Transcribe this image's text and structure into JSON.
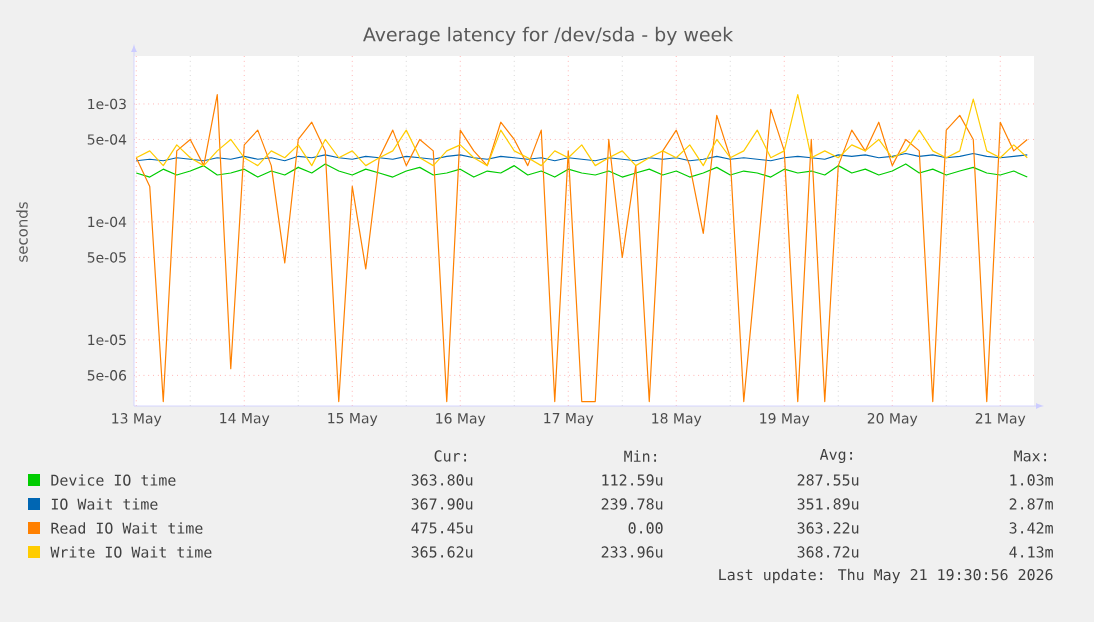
{
  "chart_data": {
    "type": "line",
    "title": "Average latency for /dev/sda - by week",
    "ylabel": "seconds",
    "x": [
      "2026-05-13T12:00",
      "2026-05-13T15:00",
      "2026-05-13T18:00",
      "2026-05-13T21:00",
      "2026-05-14T00:00",
      "2026-05-14T03:00",
      "2026-05-14T06:00",
      "2026-05-14T09:00",
      "2026-05-14T12:00",
      "2026-05-14T15:00",
      "2026-05-14T18:00",
      "2026-05-14T21:00",
      "2026-05-15T00:00",
      "2026-05-15T03:00",
      "2026-05-15T06:00",
      "2026-05-15T09:00",
      "2026-05-15T12:00",
      "2026-05-15T15:00",
      "2026-05-15T18:00",
      "2026-05-15T21:00",
      "2026-05-16T00:00",
      "2026-05-16T03:00",
      "2026-05-16T06:00",
      "2026-05-16T09:00",
      "2026-05-16T12:00",
      "2026-05-16T15:00",
      "2026-05-16T18:00",
      "2026-05-16T21:00",
      "2026-05-17T00:00",
      "2026-05-17T03:00",
      "2026-05-17T06:00",
      "2026-05-17T09:00",
      "2026-05-17T12:00",
      "2026-05-17T15:00",
      "2026-05-17T18:00",
      "2026-05-17T21:00",
      "2026-05-18T00:00",
      "2026-05-18T03:00",
      "2026-05-18T06:00",
      "2026-05-18T09:00",
      "2026-05-18T12:00",
      "2026-05-18T15:00",
      "2026-05-18T18:00",
      "2026-05-18T21:00",
      "2026-05-19T00:00",
      "2026-05-19T03:00",
      "2026-05-19T06:00",
      "2026-05-19T09:00",
      "2026-05-19T12:00",
      "2026-05-19T15:00",
      "2026-05-19T18:00",
      "2026-05-19T21:00",
      "2026-05-20T00:00",
      "2026-05-20T03:00",
      "2026-05-20T06:00",
      "2026-05-20T09:00",
      "2026-05-20T12:00",
      "2026-05-20T15:00",
      "2026-05-20T18:00",
      "2026-05-20T21:00",
      "2026-05-21T00:00",
      "2026-05-21T03:00",
      "2026-05-21T06:00",
      "2026-05-21T09:00",
      "2026-05-21T12:00",
      "2026-05-21T15:00",
      "2026-05-21T18:00"
    ],
    "series": [
      {
        "name": "Device IO time",
        "color": "#00cc00",
        "values": [
          0.00026,
          0.00024,
          0.00028,
          0.00025,
          0.00027,
          0.0003,
          0.00025,
          0.00026,
          0.00028,
          0.00024,
          0.00027,
          0.00025,
          0.00029,
          0.00026,
          0.00031,
          0.00027,
          0.00025,
          0.00028,
          0.00026,
          0.00024,
          0.00027,
          0.00029,
          0.00025,
          0.00026,
          0.00028,
          0.00024,
          0.00027,
          0.00026,
          0.0003,
          0.00025,
          0.00027,
          0.00024,
          0.00028,
          0.00026,
          0.00025,
          0.00027,
          0.00024,
          0.00026,
          0.00028,
          0.00025,
          0.00027,
          0.00024,
          0.00026,
          0.00029,
          0.00025,
          0.00027,
          0.00026,
          0.00024,
          0.00028,
          0.00026,
          0.00027,
          0.00025,
          0.0003,
          0.00026,
          0.00028,
          0.00025,
          0.00027,
          0.00031,
          0.00026,
          0.00028,
          0.00025,
          0.00027,
          0.00029,
          0.00026,
          0.00025,
          0.00027,
          0.00024
        ]
      },
      {
        "name": "IO Wait time",
        "color": "#0066b3",
        "values": [
          0.00033,
          0.00034,
          0.00033,
          0.00035,
          0.00034,
          0.00033,
          0.00035,
          0.00034,
          0.00036,
          0.00034,
          0.00035,
          0.00033,
          0.00036,
          0.00035,
          0.00037,
          0.00035,
          0.00034,
          0.00036,
          0.00035,
          0.00034,
          0.00036,
          0.00035,
          0.00034,
          0.00036,
          0.00037,
          0.00035,
          0.00034,
          0.00036,
          0.00035,
          0.00034,
          0.00035,
          0.00033,
          0.00035,
          0.00034,
          0.00033,
          0.00035,
          0.00034,
          0.00033,
          0.00035,
          0.00034,
          0.00035,
          0.00033,
          0.00034,
          0.00036,
          0.00034,
          0.00035,
          0.00034,
          0.00033,
          0.00035,
          0.00036,
          0.00035,
          0.00034,
          0.00037,
          0.00036,
          0.00037,
          0.00035,
          0.00036,
          0.00038,
          0.00036,
          0.00037,
          0.00035,
          0.00036,
          0.00038,
          0.00036,
          0.00035,
          0.00036,
          0.00037
        ]
      },
      {
        "name": "Read IO Wait time",
        "color": "#ff8000",
        "values": [
          0.00035,
          0.0002,
          3e-06,
          0.0004,
          0.0005,
          0.0003,
          0.0012,
          5.7e-06,
          0.00045,
          0.0006,
          0.0003,
          4.5e-05,
          0.0005,
          0.0007,
          0.0004,
          3e-06,
          0.0002,
          4e-05,
          0.00035,
          0.0006,
          0.0003,
          0.0005,
          0.0004,
          3e-06,
          0.0006,
          0.0004,
          0.0003,
          0.0007,
          0.0005,
          0.0003,
          0.0006,
          3e-06,
          0.0004,
          3e-06,
          3e-06,
          0.0005,
          5e-05,
          0.0003,
          3e-06,
          0.0004,
          0.0006,
          0.0003,
          8e-05,
          0.0008,
          0.00035,
          3e-06,
          5e-05,
          0.0009,
          0.0004,
          3e-06,
          0.0005,
          3e-06,
          0.0003,
          0.0006,
          0.0004,
          0.0007,
          0.0003,
          0.0005,
          0.0004,
          3e-06,
          0.0006,
          0.0008,
          0.0005,
          3e-06,
          0.0007,
          0.0004,
          0.0005
        ]
      },
      {
        "name": "Write IO Wait time",
        "color": "#ffcc00",
        "values": [
          0.00035,
          0.0004,
          0.0003,
          0.00045,
          0.00035,
          0.0003,
          0.0004,
          0.0005,
          0.00035,
          0.0003,
          0.0004,
          0.00035,
          0.00045,
          0.0003,
          0.0005,
          0.00035,
          0.0004,
          0.0003,
          0.00035,
          0.0004,
          0.0006,
          0.00035,
          0.0003,
          0.0004,
          0.00045,
          0.00035,
          0.0003,
          0.0006,
          0.0004,
          0.00035,
          0.0003,
          0.0004,
          0.00035,
          0.00045,
          0.0003,
          0.00035,
          0.0004,
          0.0003,
          0.00035,
          0.0004,
          0.00035,
          0.00045,
          0.0003,
          0.0005,
          0.00035,
          0.0004,
          0.0006,
          0.00035,
          0.0004,
          0.0012,
          0.00035,
          0.0004,
          0.00035,
          0.00045,
          0.0004,
          0.0005,
          0.00035,
          0.0004,
          0.0006,
          0.0004,
          0.00035,
          0.0004,
          0.0011,
          0.0004,
          0.00035,
          0.00045,
          0.00035
        ]
      }
    ],
    "xlim": [
      "2026-05-13T11:30",
      "2026-05-21T19:30"
    ],
    "xticks": [
      {
        "value": "2026-05-13T12:00",
        "label": "13 May"
      },
      {
        "value": "2026-05-14T12:00",
        "label": "14 May"
      },
      {
        "value": "2026-05-15T12:00",
        "label": "15 May"
      },
      {
        "value": "2026-05-16T12:00",
        "label": "16 May"
      },
      {
        "value": "2026-05-17T12:00",
        "label": "17 May"
      },
      {
        "value": "2026-05-18T12:00",
        "label": "18 May"
      },
      {
        "value": "2026-05-19T12:00",
        "label": "19 May"
      },
      {
        "value": "2026-05-20T12:00",
        "label": "20 May"
      },
      {
        "value": "2026-05-21T12:00",
        "label": "21 May"
      }
    ],
    "ylim": [
      2.75e-06,
      0.00255
    ],
    "log": "y",
    "yticks": [
      {
        "value": 5e-06,
        "label": "5e-06"
      },
      {
        "value": 1e-05,
        "label": "1e-05"
      },
      {
        "value": 5e-05,
        "label": "5e-05"
      },
      {
        "value": 0.0001,
        "label": "1e-04"
      },
      {
        "value": 0.0005,
        "label": "5e-04"
      },
      {
        "value": 0.001,
        "label": "1e-03"
      }
    ],
    "grid": true,
    "legend": "bottom",
    "marker": "none",
    "line_style": "solid",
    "annotations": [
      "Cur:",
      "Min:",
      "Avg:",
      "Max:",
      "363.80u",
      "112.59u",
      "287.55u",
      "1.03m",
      "367.90u",
      "239.78u",
      "351.89u",
      "2.87m",
      "475.45u",
      "0.00",
      "363.22u",
      "3.42m",
      "365.62u",
      "233.96u",
      "368.72u",
      "4.13m",
      "Last update: Thu May 21 19:30:56 2026"
    ]
  }
}
